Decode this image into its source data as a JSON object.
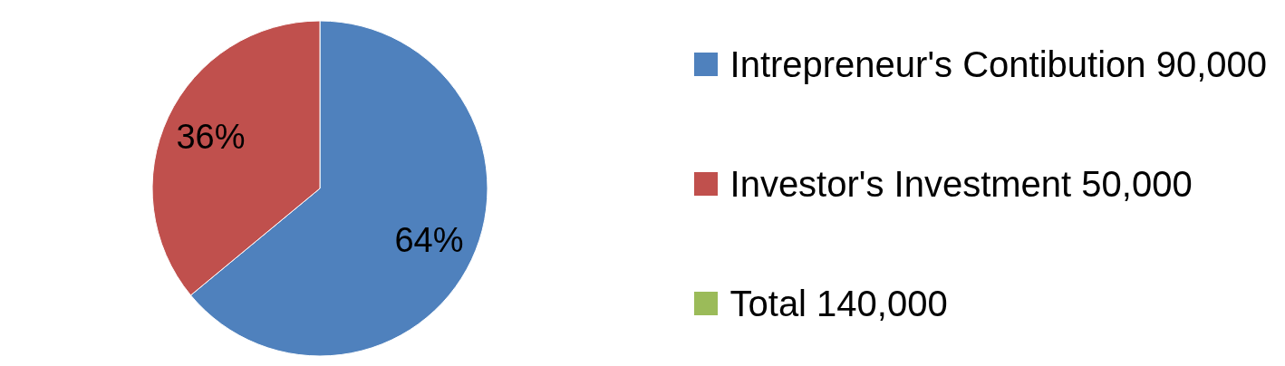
{
  "chart_data": {
    "type": "pie",
    "categories": [
      "Intrepreneur's Contibution 90,000",
      "Investor's Investment 50,000",
      "Total 140,000"
    ],
    "values": [
      64,
      36,
      0
    ],
    "colors": [
      "#4f81bd",
      "#c0504d",
      "#9bbb59"
    ],
    "value_labels": [
      "64%",
      "36%",
      null
    ],
    "legend": "right"
  }
}
